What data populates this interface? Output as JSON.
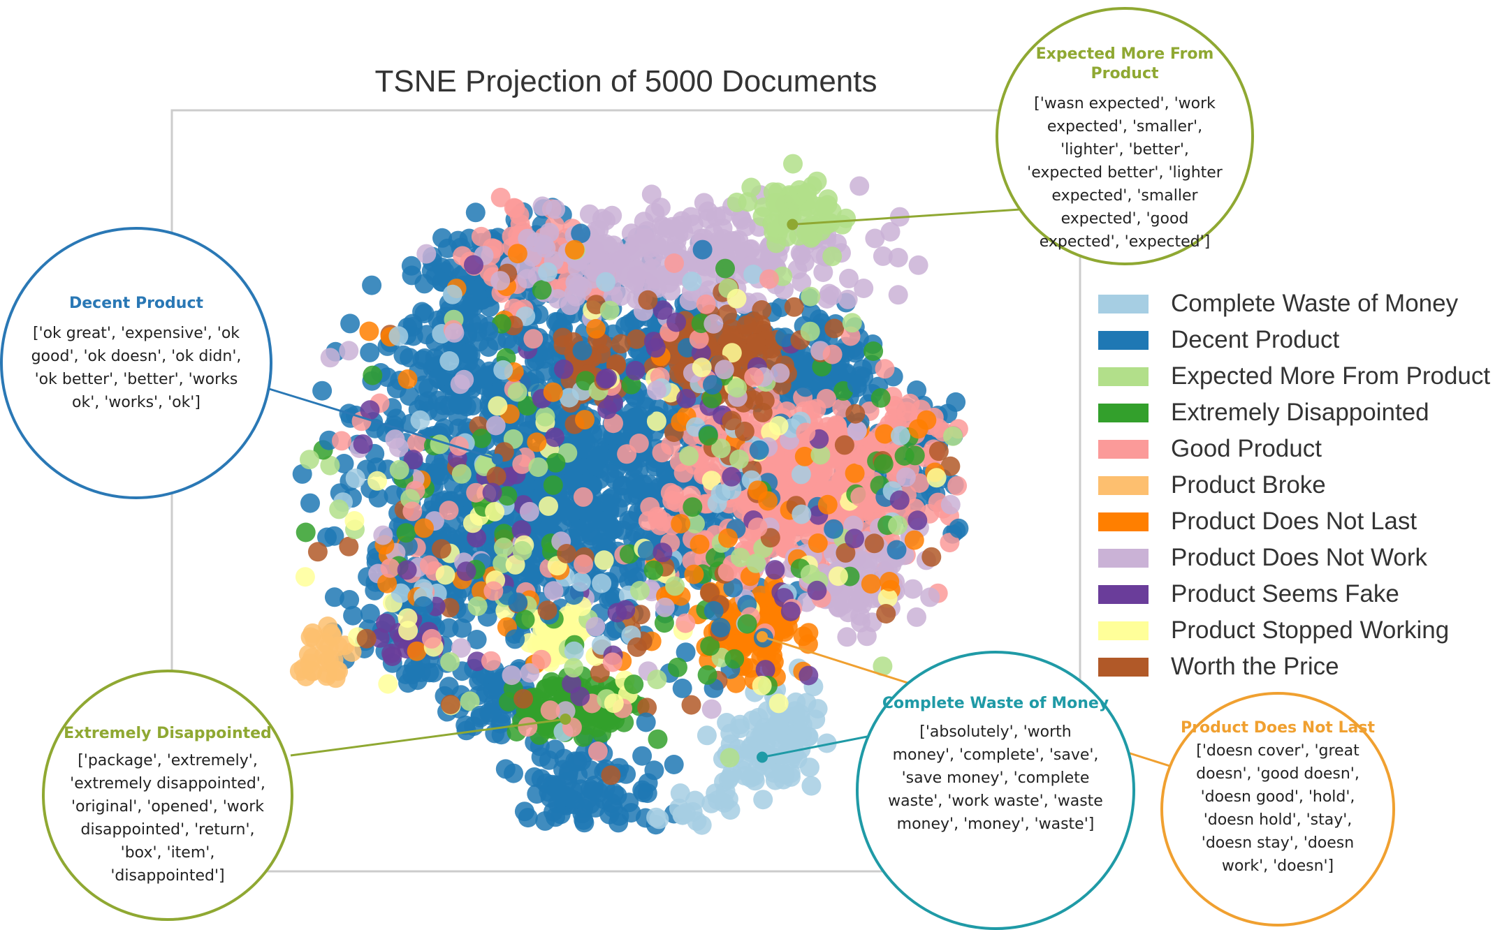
{
  "chart_data": {
    "type": "scatter",
    "title": "TSNE Projection of 5000 Documents",
    "xlabel": "",
    "ylabel": "",
    "xlim": [
      -60,
      60
    ],
    "ylim": [
      -60,
      60
    ],
    "grid": false,
    "legend_position": "right",
    "series": [
      {
        "name": "Complete Waste of Money",
        "color": "#a6cee3"
      },
      {
        "name": "Decent Product",
        "color": "#1f78b4"
      },
      {
        "name": "Expected More From Product",
        "color": "#b2df8a"
      },
      {
        "name": "Extremely Disappointed",
        "color": "#33a02c"
      },
      {
        "name": "Good Product",
        "color": "#fb9a99"
      },
      {
        "name": "Product Broke",
        "color": "#fdbf6f"
      },
      {
        "name": "Product Does Not Last",
        "color": "#ff7f00"
      },
      {
        "name": "Product Does Not Work",
        "color": "#cab2d6"
      },
      {
        "name": "Product Seems Fake",
        "color": "#6a3d9a"
      },
      {
        "name": "Product Stopped Working",
        "color": "#ffff99"
      },
      {
        "name": "Worth the Price",
        "color": "#b15928"
      }
    ],
    "annotations": [
      {
        "topic": "Expected More From Product",
        "title": "Expected More From Product",
        "terms": "['wasn expected', 'work expected', 'smaller', 'lighter', 'better', 'expected better', 'lighter expected', 'smaller expected', 'good expected', 'expected']",
        "lines": [
          "['wasn expected', 'work",
          "expected', 'smaller',",
          "'lighter', 'better',",
          "'expected better', 'lighter",
          "expected', 'smaller",
          "expected', 'good",
          "expected', 'expected']"
        ],
        "title_lines": [
          "Expected More From",
          "Product"
        ],
        "color": "#8fa832",
        "anchor": [
          22,
          42
        ]
      },
      {
        "topic": "Decent Product",
        "title": "Decent Product",
        "terms": "['ok great', 'expensive', 'ok good', 'ok doesn', 'ok didn', 'ok better', 'better', 'works ok', 'works', 'ok']",
        "lines": [
          "['ok great', 'expensive', 'ok",
          "good', 'ok doesn', 'ok didn',",
          "'ok better', 'better', 'works",
          "ok', 'works', 'ok']"
        ],
        "title_lines": [
          "Decent Product"
        ],
        "color": "#2a78b5",
        "anchor": [
          -17,
          5
        ]
      },
      {
        "topic": "Extremely Disappointed",
        "title": "Extremely Disappointed",
        "terms": "['package', 'extremely', 'extremely disappointed', 'original', 'opened', 'work disappointed', 'return', 'box', 'item', 'disappointed']",
        "lines": [
          "['package', 'extremely',",
          "'extremely disappointed',",
          "'original', 'opened', 'work",
          "disappointed', 'return',",
          "'box', 'item',",
          "'disappointed']"
        ],
        "title_lines": [
          "Extremely Disappointed"
        ],
        "color": "#8fa832",
        "anchor": [
          -8,
          -36
        ]
      },
      {
        "topic": "Complete Waste of Money",
        "title": "Complete Waste of Money",
        "terms": "['absolutely', 'worth money', 'complete', 'save', 'save money', 'complete waste', 'work waste', 'waste money', 'money', 'waste']",
        "lines": [
          "['absolutely', 'worth",
          "money', 'complete', 'save',",
          "'save money', 'complete",
          "waste', 'work waste', 'waste",
          "money', 'money', 'waste']"
        ],
        "title_lines": [
          "Complete Waste of Money"
        ],
        "color": "#1f9aa6",
        "anchor": [
          18,
          -42
        ]
      },
      {
        "topic": "Product Does Not Last",
        "title": "Product Does Not Last",
        "terms": "['doesn cover', 'great doesn', 'good doesn', 'doesn good', 'hold', 'doesn hold', 'stay', 'doesn stay', 'doesn work', 'doesn']",
        "lines": [
          "['doesn cover', 'great",
          "doesn', 'good doesn',",
          "'doesn good', 'hold',",
          "'doesn hold', 'stay',",
          "'doesn stay', 'doesn",
          "work', 'doesn']"
        ],
        "title_lines": [
          "Product Does Not Last"
        ],
        "color": "#f0a030",
        "anchor": [
          18,
          -23
        ]
      }
    ]
  }
}
